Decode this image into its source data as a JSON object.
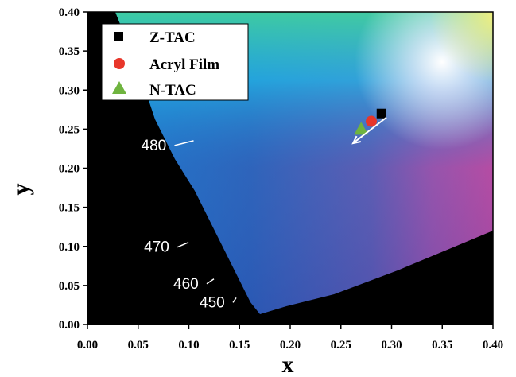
{
  "chart_data": {
    "type": "scatter",
    "title": "",
    "xlabel": "x",
    "ylabel": "y",
    "xlim": [
      0.0,
      0.4
    ],
    "ylim": [
      0.0,
      0.4
    ],
    "x_ticks": [
      "0.00",
      "0.05",
      "0.10",
      "0.15",
      "0.20",
      "0.25",
      "0.30",
      "0.35",
      "0.40"
    ],
    "y_ticks": [
      "0.00",
      "0.05",
      "0.10",
      "0.15",
      "0.20",
      "0.25",
      "0.30",
      "0.35",
      "0.40"
    ],
    "background": "CIE 1931 chromaticity diagram",
    "wavelength_labels": [
      {
        "text": "480",
        "x": 0.1,
        "y": 0.223
      },
      {
        "text": "470",
        "x": 0.095,
        "y": 0.093
      },
      {
        "text": "460",
        "x": 0.12,
        "y": 0.046
      },
      {
        "text": "450",
        "x": 0.142,
        "y": 0.022
      }
    ],
    "series": [
      {
        "name": "Z-TAC",
        "x": 0.29,
        "y": 0.27,
        "marker": "square",
        "color": "#000000"
      },
      {
        "name": "Acryl Film",
        "x": 0.28,
        "y": 0.26,
        "marker": "circle",
        "color": "#e8362a"
      },
      {
        "name": "N-TAC",
        "x": 0.27,
        "y": 0.25,
        "marker": "triangle",
        "color": "#6fb43f"
      }
    ],
    "arrow": {
      "from": [
        0.295,
        0.265
      ],
      "to": [
        0.262,
        0.232
      ],
      "color": "#ffffff"
    },
    "legend_position": "top-left"
  }
}
